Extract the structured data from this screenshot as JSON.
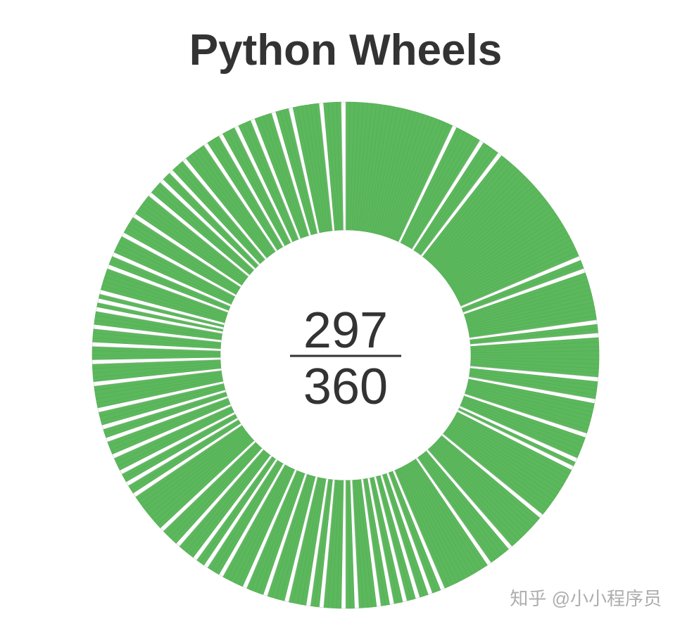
{
  "chart_data": {
    "type": "donut",
    "title": "Python Wheels",
    "numerator": 297,
    "denominator": 360,
    "color": "#5cb85c",
    "missing_color": "#ffffff",
    "missing": [
      25,
      32,
      37,
      67,
      70,
      82,
      85,
      95,
      100,
      108,
      114,
      116,
      129,
      139,
      145,
      157,
      160,
      163,
      166,
      169,
      172,
      177,
      180,
      185,
      188,
      193,
      198,
      203,
      209,
      213,
      216,
      221,
      226,
      236,
      239,
      242,
      246,
      250,
      253,
      257,
      263,
      268,
      272,
      276,
      280,
      282,
      284,
      290,
      293,
      298,
      303,
      309,
      313,
      316,
      320,
      326,
      330,
      334,
      338,
      343,
      347,
      354,
      359
    ]
  },
  "watermark": "知乎 @小小程序员"
}
